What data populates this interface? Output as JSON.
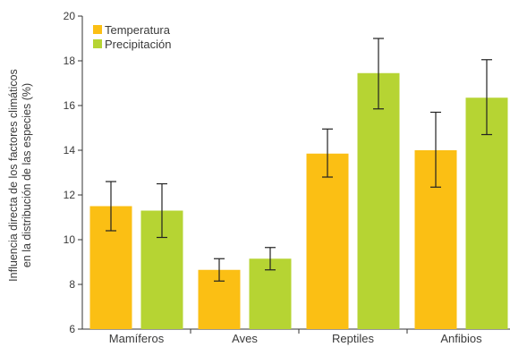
{
  "chart_data": {
    "type": "bar",
    "title": "",
    "xlabel": "",
    "ylabel_lines": [
      "Influencia directa de los factores climáticos",
      "en la distribución de las especies (%)"
    ],
    "categories": [
      "Mamíferos",
      "Aves",
      "Reptiles",
      "Anfibios"
    ],
    "ylim": [
      6,
      20
    ],
    "yticks": [
      "6",
      "8",
      "10",
      "12",
      "14",
      "16",
      "18",
      "20"
    ],
    "legend_position": "top-left",
    "grid": false,
    "series": [
      {
        "name": "Temperatura",
        "color": "#fbbf14",
        "values": [
          11.5,
          8.65,
          13.85,
          14.0
        ],
        "error_low": [
          10.4,
          8.15,
          12.8,
          12.35
        ],
        "error_high": [
          12.6,
          9.15,
          14.95,
          15.7
        ]
      },
      {
        "name": "Precipitación",
        "color": "#b6d433",
        "values": [
          11.3,
          9.15,
          17.45,
          16.35
        ],
        "error_low": [
          10.1,
          8.65,
          15.85,
          14.7
        ],
        "error_high": [
          12.5,
          9.65,
          19.0,
          18.05
        ]
      }
    ]
  }
}
